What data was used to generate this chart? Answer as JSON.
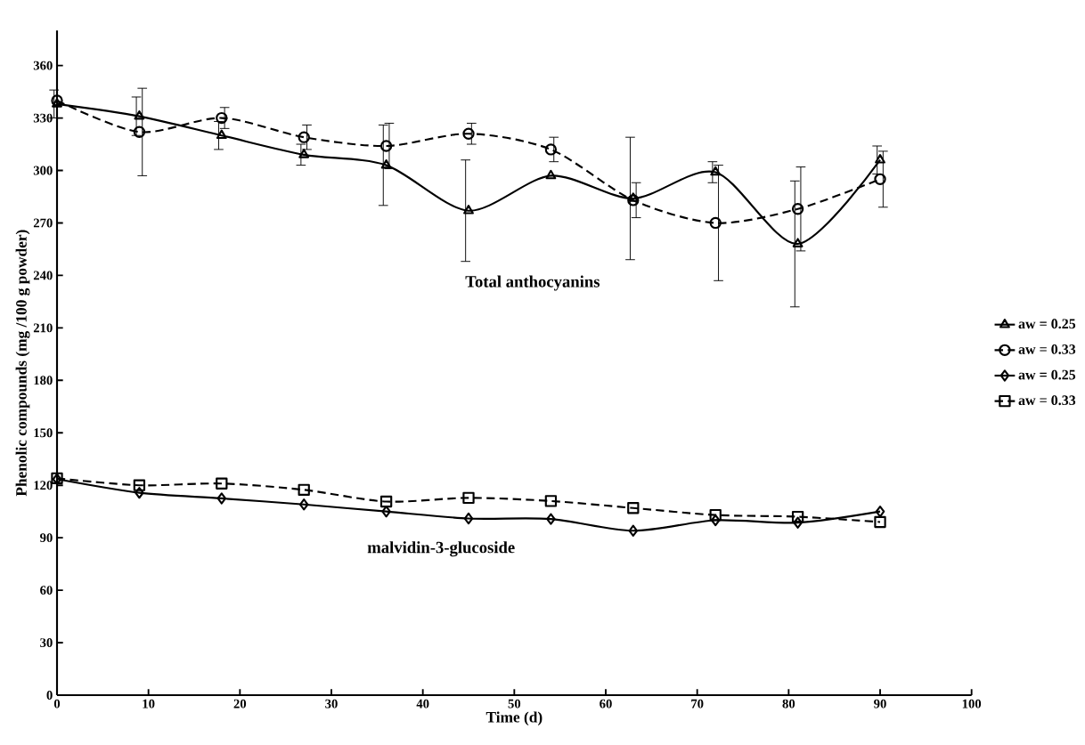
{
  "chart_data": {
    "type": "line",
    "xlabel": "Time (d)",
    "ylabel": "Phenolic compounds (mg /100 g powder)",
    "x": [
      0,
      9,
      18,
      27,
      36,
      45,
      54,
      63,
      72,
      81,
      90
    ],
    "series": [
      {
        "name": "aw = 0.25",
        "color": "#000000",
        "marker": "triangle",
        "line_style": "solid",
        "values": [
          338,
          331,
          320,
          309,
          303,
          277,
          297,
          284,
          299,
          258,
          306
        ],
        "errors": [
          8,
          11,
          8,
          6,
          23,
          29,
          null,
          35,
          6,
          36,
          8
        ]
      },
      {
        "name": "aw = 0.33",
        "color": "#000000",
        "marker": "circle",
        "line_style": "dashed",
        "values": [
          340,
          322,
          330,
          319,
          314,
          321,
          312,
          283,
          270,
          278,
          295
        ],
        "errors": [
          null,
          25,
          6,
          7,
          13,
          6,
          7,
          10,
          33,
          24,
          16
        ]
      },
      {
        "name": "aw = 0.25",
        "color": "#000000",
        "marker": "diamond",
        "line_style": "solid",
        "values": [
          123.5,
          115.7,
          112.5,
          109,
          105,
          101,
          100.7,
          94,
          100,
          98.6,
          105
        ]
      },
      {
        "name": "aw = 0.33",
        "color": "#000000",
        "marker": "square",
        "line_style": "dashed",
        "values": [
          124,
          120,
          121,
          117.4,
          110.7,
          112.8,
          111,
          107,
          103,
          102,
          99
        ]
      }
    ],
    "annotations": [
      "Total anthocyanins",
      "malvidin-3-glucoside"
    ],
    "xlim": [
      0,
      100
    ],
    "xticks": [
      0,
      10,
      20,
      30,
      40,
      50,
      60,
      70,
      80,
      90,
      100
    ],
    "ylim": [
      0,
      380
    ],
    "yticks": [
      0,
      30,
      60,
      90,
      120,
      150,
      180,
      210,
      240,
      270,
      300,
      330,
      360
    ],
    "grid": false,
    "legend": "right"
  }
}
